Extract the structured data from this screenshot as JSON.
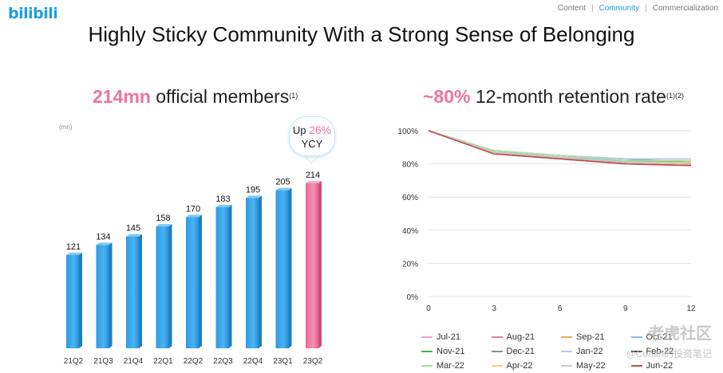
{
  "brand": {
    "logo_text": "bilibili",
    "logo_color": "#1fa0dc"
  },
  "nav": {
    "items": [
      "Content",
      "Community",
      "Commercialization"
    ],
    "active": "Community"
  },
  "title": "Highly Sticky Community With a Strong Sense of Belonging",
  "left_heading": {
    "highlight": "214mn",
    "text": " official members",
    "sup": "(1)"
  },
  "right_heading": {
    "highlight": "~80%",
    "text": " 12-month retention rate",
    "sup": "(1)(2)"
  },
  "unit_label": "(mn)",
  "callout": {
    "line1": "Up ",
    "pct": "26%",
    "line2": "YCY"
  },
  "colors": {
    "accent_pink": "#f0739c",
    "bar_blue": "#3aa7ec",
    "bar_pink": "#ef7fa6"
  },
  "watermark": {
    "line1": "老虎社区",
    "line2": "@Conan的投资笔记"
  },
  "chart_data": [
    {
      "type": "bar",
      "categories": [
        "21Q2",
        "21Q3",
        "21Q4",
        "22Q1",
        "22Q2",
        "22Q3",
        "22Q4",
        "23Q1",
        "23Q2"
      ],
      "values": [
        121,
        134,
        145,
        158,
        170,
        183,
        195,
        205,
        214
      ],
      "highlight_index": 8,
      "ylim": [
        0,
        230
      ]
    },
    {
      "type": "line",
      "x": [
        0,
        3,
        6,
        9,
        12
      ],
      "xlim": [
        0,
        12
      ],
      "ylim": [
        0,
        100
      ],
      "yticks": [
        "0%",
        "20%",
        "40%",
        "60%",
        "80%",
        "100%"
      ],
      "xticks": [
        "0",
        "3",
        "6",
        "9",
        "12"
      ],
      "grid": true,
      "legend": "bottom",
      "series": [
        {
          "name": "Jul-21",
          "color": "#e8a6c8",
          "values": [
            100,
            86,
            84,
            80,
            79
          ]
        },
        {
          "name": "Aug-21",
          "color": "#e07fb0",
          "values": [
            100,
            86,
            83,
            80,
            79
          ]
        },
        {
          "name": "Sep-21",
          "color": "#f4a259",
          "values": [
            100,
            87,
            84,
            81,
            80
          ]
        },
        {
          "name": "Oct-21",
          "color": "#7ec4ef",
          "values": [
            100,
            87,
            84,
            82,
            81
          ]
        },
        {
          "name": "Nov-21",
          "color": "#3cb54a",
          "values": [
            100,
            88,
            85,
            83,
            81
          ]
        },
        {
          "name": "Dec-21",
          "color": "#8c8c8c",
          "values": [
            100,
            87,
            84,
            81,
            80
          ]
        },
        {
          "name": "Jan-22",
          "color": "#b9c8e8",
          "values": [
            100,
            88,
            85,
            83,
            83
          ]
        },
        {
          "name": "Feb-22",
          "color": "#444444",
          "values": [
            100,
            87,
            84,
            81,
            81
          ]
        },
        {
          "name": "Mar-22",
          "color": "#a6e3a1",
          "values": [
            100,
            88,
            85,
            82,
            82
          ]
        },
        {
          "name": "Apr-22",
          "color": "#f7d08a",
          "values": [
            100,
            87,
            84,
            81,
            81
          ]
        },
        {
          "name": "May-22",
          "color": "#c9c9c9",
          "values": [
            100,
            87,
            84,
            81,
            80
          ]
        },
        {
          "name": "Jun-22",
          "color": "#c0504d",
          "values": [
            100,
            86,
            83,
            80,
            79
          ]
        }
      ]
    }
  ]
}
